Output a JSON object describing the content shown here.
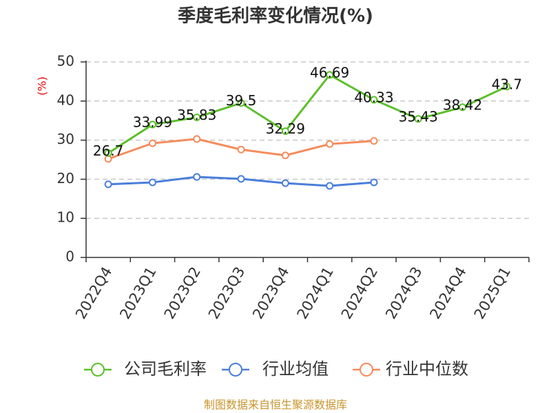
{
  "chart_data": {
    "type": "line",
    "title": "季度毛利率变化情况(%)",
    "ylabel": "(%)",
    "xlabel": "",
    "categories": [
      "2022Q4",
      "2023Q1",
      "2023Q2",
      "2023Q3",
      "2023Q4",
      "2024Q1",
      "2024Q2",
      "2024Q3",
      "2024Q4",
      "2025Q1"
    ],
    "ylim": [
      0,
      50
    ],
    "yticks": [
      0,
      10,
      20,
      30,
      40,
      50
    ],
    "grid": true,
    "legend_position": "bottom",
    "series": [
      {
        "name": "公司毛利率",
        "color": "#5cbf2a",
        "show_data_labels": true,
        "values": [
          26.7,
          33.99,
          35.83,
          39.5,
          32.29,
          46.69,
          40.33,
          35.43,
          38.42,
          43.7
        ]
      },
      {
        "name": "行业均值",
        "color": "#4a7edb",
        "show_data_labels": false,
        "values": [
          18.7,
          19.2,
          20.6,
          20.1,
          19.0,
          18.3,
          19.2,
          null,
          null,
          null
        ]
      },
      {
        "name": "行业中位数",
        "color": "#f58b5c",
        "show_data_labels": false,
        "values": [
          25.2,
          29.2,
          30.3,
          27.6,
          26.1,
          29.0,
          29.8,
          null,
          null,
          null
        ]
      }
    ]
  },
  "colors": {
    "title": "#333333",
    "ylabel": "#e60000",
    "footer": "#c8952e"
  },
  "footer": {
    "source": "制图数据来自恒生聚源数据库"
  }
}
